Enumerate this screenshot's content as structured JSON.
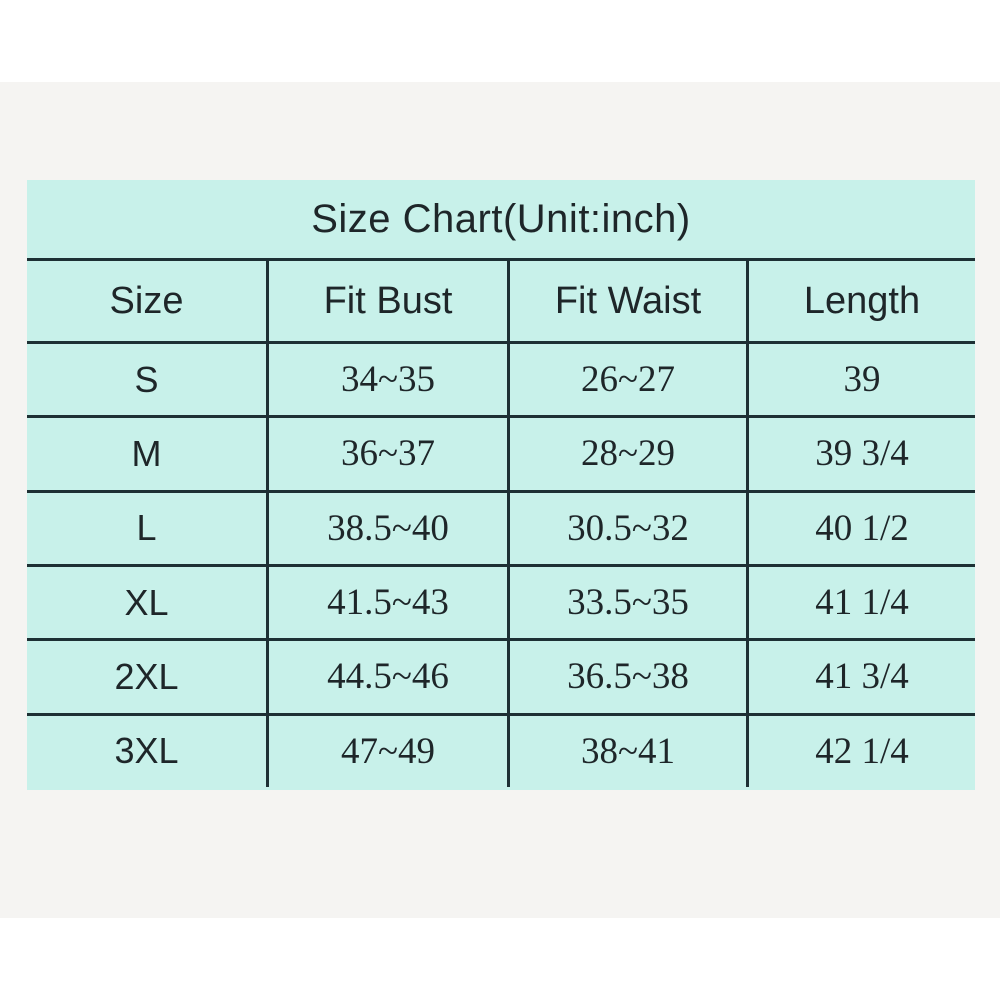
{
  "colors": {
    "table_background": "#c8f1ea",
    "page_band": "#f5f4f2",
    "page_background": "#ffffff",
    "line_color": "#1d3034",
    "text_color": "#1e2629"
  },
  "table": {
    "title": "Size Chart(Unit:inch)",
    "columns": [
      "Size",
      "Fit Bust",
      "Fit Waist",
      "Length"
    ],
    "rows": [
      {
        "size": "S",
        "fit_bust": "34~35",
        "fit_waist": "26~27",
        "length": "39"
      },
      {
        "size": "M",
        "fit_bust": "36~37",
        "fit_waist": "28~29",
        "length": "39 3/4"
      },
      {
        "size": "L",
        "fit_bust": "38.5~40",
        "fit_waist": "30.5~32",
        "length": "40 1/2"
      },
      {
        "size": "XL",
        "fit_bust": "41.5~43",
        "fit_waist": "33.5~35",
        "length": "41 1/4"
      },
      {
        "size": "2XL",
        "fit_bust": "44.5~46",
        "fit_waist": "36.5~38",
        "length": "41 3/4"
      },
      {
        "size": "3XL",
        "fit_bust": "47~49",
        "fit_waist": "38~41",
        "length": "42 1/4"
      }
    ]
  },
  "chart_data": {
    "type": "table",
    "title": "Size Chart(Unit:inch)",
    "unit": "inch",
    "columns": [
      "Size",
      "Fit Bust",
      "Fit Waist",
      "Length"
    ],
    "rows": [
      [
        "S",
        "34~35",
        "26~27",
        "39"
      ],
      [
        "M",
        "36~37",
        "28~29",
        "39 3/4"
      ],
      [
        "L",
        "38.5~40",
        "30.5~32",
        "40 1/2"
      ],
      [
        "XL",
        "41.5~43",
        "33.5~35",
        "41 1/4"
      ],
      [
        "2XL",
        "44.5~46",
        "36.5~38",
        "41 3/4"
      ],
      [
        "3XL",
        "47~49",
        "38~41",
        "42 1/4"
      ]
    ],
    "layout": {
      "header_row": true,
      "outer_border": false,
      "internal_gridlines": true
    }
  }
}
